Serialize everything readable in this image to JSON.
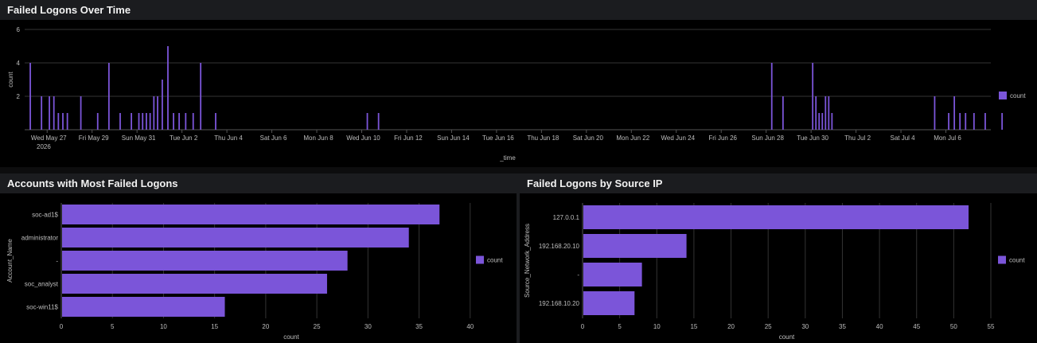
{
  "panels": {
    "time": {
      "title": "Failed Logons Over Time"
    },
    "accounts": {
      "title": "Accounts with Most Failed Logons"
    },
    "ips": {
      "title": "Failed Logons by Source IP"
    }
  },
  "colors": {
    "series": "#7b55d9",
    "grid": "#333333",
    "header_bg": "#1b1c1f"
  },
  "chart_data": [
    {
      "id": "time",
      "type": "bar",
      "title": "Failed Logons Over Time",
      "xlabel": "_time",
      "ylabel": "count",
      "ylim": [
        0,
        6
      ],
      "yticks": [
        2,
        4,
        6
      ],
      "x_tick_labels": [
        "Wed May 27",
        "Fri May 29",
        "Sun May 31",
        "Tue Jun 2",
        "Thu Jun 4",
        "Sat Jun 6",
        "Mon Jun 8",
        "Wed Jun 10",
        "Fri Jun 12",
        "Sun Jun 14",
        "Tue Jun 16",
        "Thu Jun 18",
        "Sat Jun 20",
        "Mon Jun 22",
        "Wed Jun 24",
        "Fri Jun 26",
        "Sun Jun 28",
        "Tue Jun 30",
        "Thu Jul 2",
        "Sat Jul 4",
        "Mon Jul 6"
      ],
      "x_first_label_year": "2026",
      "x_start": "2026-05-26",
      "x_end": "2026-07-08",
      "series": [
        {
          "name": "count",
          "points": [
            [
              "2026-05-26",
              4
            ],
            [
              "2026-05-26",
              2
            ],
            [
              "2026-05-27",
              2
            ],
            [
              "2026-05-27",
              2
            ],
            [
              "2026-05-27",
              1
            ],
            [
              "2026-05-27",
              1
            ],
            [
              "2026-05-27",
              1
            ],
            [
              "2026-05-28",
              2
            ],
            [
              "2026-05-29",
              1
            ],
            [
              "2026-05-29",
              4
            ],
            [
              "2026-05-30",
              1
            ],
            [
              "2026-05-30",
              1
            ],
            [
              "2026-05-31",
              1
            ],
            [
              "2026-05-31",
              1
            ],
            [
              "2026-05-31",
              1
            ],
            [
              "2026-05-31",
              1
            ],
            [
              "2026-05-31",
              2
            ],
            [
              "2026-05-31",
              2
            ],
            [
              "2026-06-01",
              3
            ],
            [
              "2026-06-01",
              5
            ],
            [
              "2026-06-01",
              1
            ],
            [
              "2026-06-01",
              1
            ],
            [
              "2026-06-02",
              1
            ],
            [
              "2026-06-02",
              1
            ],
            [
              "2026-06-02",
              4
            ],
            [
              "2026-06-03",
              1
            ],
            [
              "2026-06-10",
              1
            ],
            [
              "2026-06-10",
              1
            ],
            [
              "2026-06-28",
              4
            ],
            [
              "2026-06-28",
              2
            ],
            [
              "2026-06-30",
              4
            ],
            [
              "2026-06-30",
              2
            ],
            [
              "2026-06-30",
              1
            ],
            [
              "2026-06-30",
              1
            ],
            [
              "2026-06-30",
              2
            ],
            [
              "2026-06-30",
              2
            ],
            [
              "2026-06-30",
              1
            ],
            [
              "2026-07-05",
              2
            ],
            [
              "2026-07-06",
              1
            ],
            [
              "2026-07-06",
              2
            ],
            [
              "2026-07-06",
              1
            ],
            [
              "2026-07-06",
              1
            ],
            [
              "2026-07-07",
              1
            ],
            [
              "2026-07-07",
              1
            ],
            [
              "2026-07-08",
              1
            ]
          ]
        }
      ],
      "grid": true,
      "legend": {
        "position": "right",
        "entries": [
          "count"
        ]
      }
    },
    {
      "id": "accounts",
      "type": "bar",
      "orientation": "horizontal",
      "title": "Accounts with Most Failed Logons",
      "categories": [
        "soc-ad1$",
        "administrator",
        "-",
        "soc_analyst",
        "soc-win11$"
      ],
      "values": [
        37,
        34,
        28,
        26,
        16
      ],
      "xlabel": "count",
      "ylabel": "Account_Name",
      "xlim": [
        0,
        45
      ],
      "xticks": [
        0,
        5,
        10,
        15,
        20,
        25,
        30,
        35,
        40
      ],
      "grid": true,
      "legend": {
        "position": "right",
        "entries": [
          "count"
        ]
      }
    },
    {
      "id": "ips",
      "type": "bar",
      "orientation": "horizontal",
      "title": "Failed Logons by Source IP",
      "categories": [
        "127.0.0.1",
        "192.168.20.10",
        "-",
        "192.168.10.20"
      ],
      "values": [
        52,
        14,
        8,
        7
      ],
      "xlabel": "count",
      "ylabel": "Source_Network_Address",
      "xlim": [
        0,
        55
      ],
      "xticks": [
        0,
        5,
        10,
        15,
        20,
        25,
        30,
        35,
        40,
        45,
        50,
        55
      ],
      "grid": true,
      "legend": {
        "position": "right",
        "entries": [
          "count"
        ]
      }
    }
  ]
}
